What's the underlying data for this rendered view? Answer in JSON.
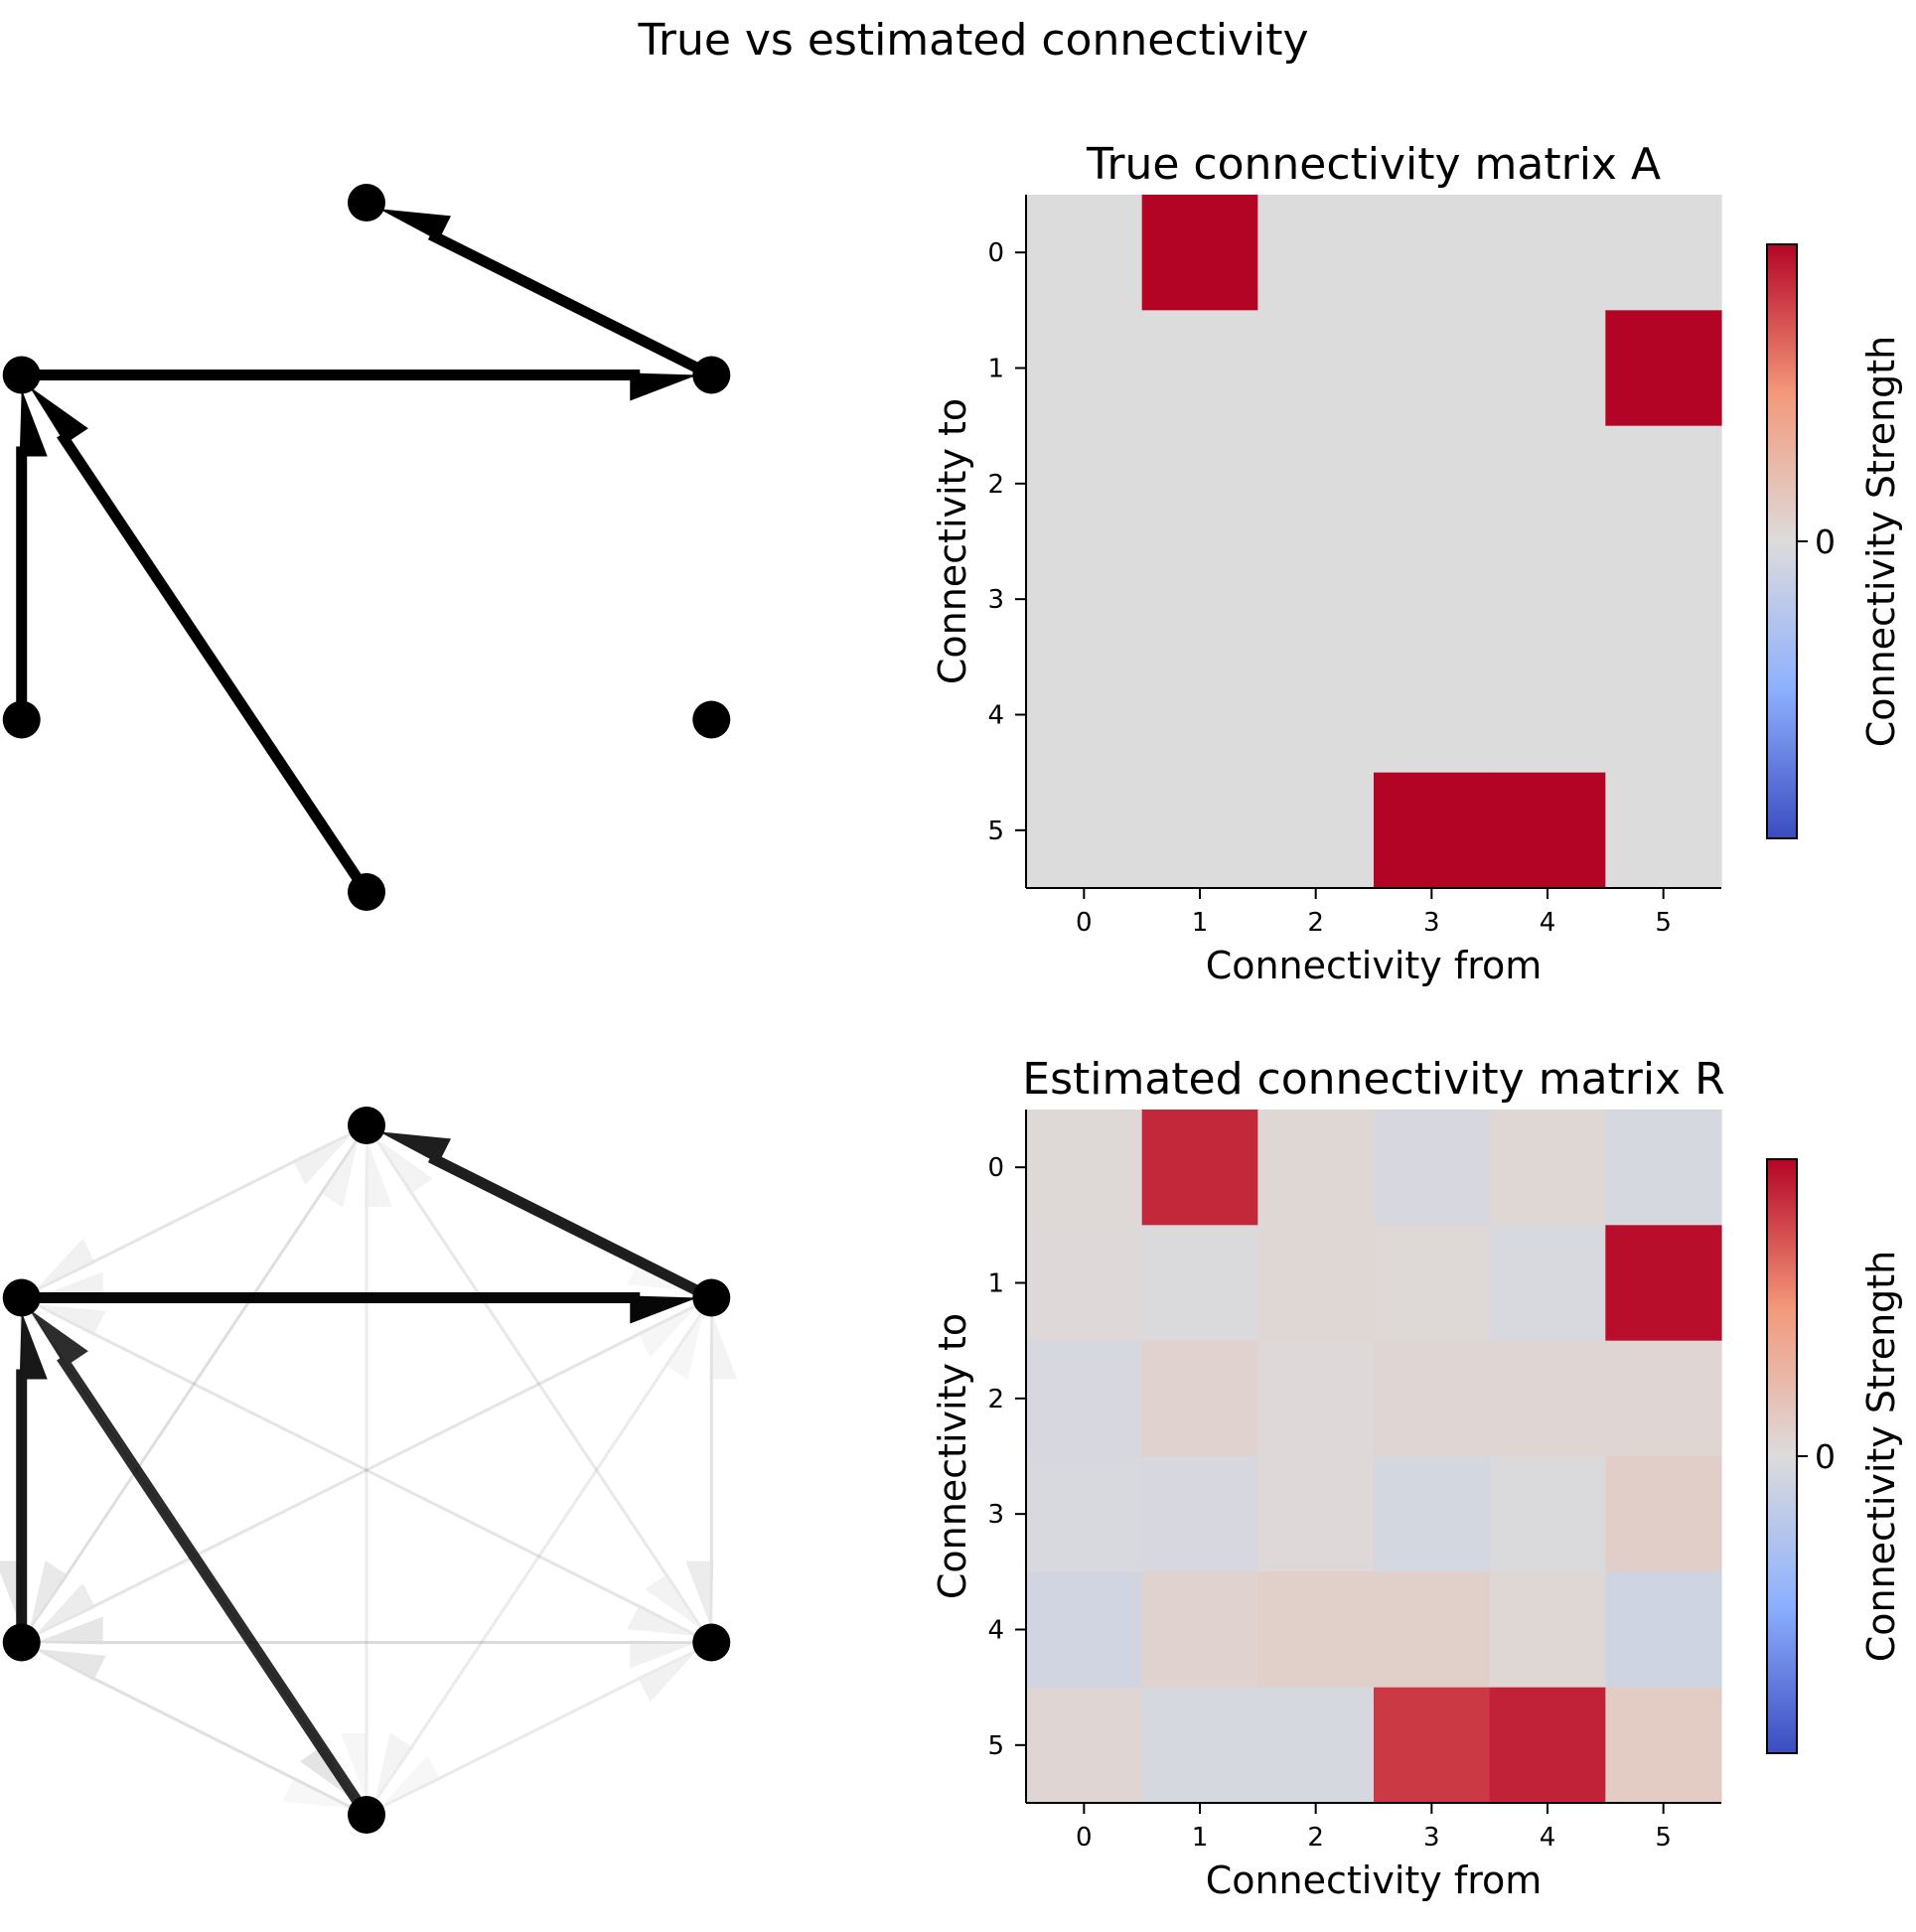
{
  "figure_title": "True vs estimated connectivity",
  "chart_data": [
    {
      "type": "network",
      "panel": "true-graph",
      "nodes": [
        0,
        1,
        2,
        3,
        4,
        5
      ],
      "edges": [
        {
          "from": 1,
          "to": 0,
          "weight": 1
        },
        {
          "from": 5,
          "to": 1,
          "weight": 1
        },
        {
          "from": 3,
          "to": 5,
          "weight": 1
        },
        {
          "from": 4,
          "to": 5,
          "weight": 1
        }
      ]
    },
    {
      "type": "heatmap",
      "panel": "true-matrix",
      "title": "True connectivity matrix A",
      "xlabel": "Connectivity from",
      "ylabel": "Connectivity to",
      "x_ticks": [
        "0",
        "1",
        "2",
        "3",
        "4",
        "5"
      ],
      "y_ticks": [
        "0",
        "1",
        "2",
        "3",
        "4",
        "5"
      ],
      "colormap": "coolwarm",
      "vlim": [
        -1,
        1
      ],
      "values": [
        [
          0,
          1,
          0,
          0,
          0,
          0
        ],
        [
          0,
          0,
          0,
          0,
          0,
          1
        ],
        [
          0,
          0,
          0,
          0,
          0,
          0
        ],
        [
          0,
          0,
          0,
          0,
          0,
          0
        ],
        [
          0,
          0,
          0,
          0,
          0,
          0
        ],
        [
          0,
          0,
          0,
          1,
          1,
          0
        ]
      ],
      "colorbar": {
        "label": "Connectivity Strength",
        "ticks": [
          "0"
        ]
      }
    },
    {
      "type": "network",
      "panel": "estimated-graph",
      "nodes": [
        0,
        1,
        2,
        3,
        4,
        5
      ],
      "edges": [
        {
          "from": 1,
          "to": 0,
          "weight": 0.88
        },
        {
          "from": 5,
          "to": 1,
          "weight": 0.97
        },
        {
          "from": 3,
          "to": 5,
          "weight": 0.82
        },
        {
          "from": 4,
          "to": 5,
          "weight": 0.9
        },
        {
          "from": 2,
          "to": 0,
          "weight": 0.04
        },
        {
          "from": 3,
          "to": 0,
          "weight": -0.04
        },
        {
          "from": 4,
          "to": 0,
          "weight": 0.04
        },
        {
          "from": 5,
          "to": 0,
          "weight": -0.05
        },
        {
          "from": 0,
          "to": 1,
          "weight": 0.02
        },
        {
          "from": 1,
          "to": 1,
          "weight": -0.02
        },
        {
          "from": 2,
          "to": 1,
          "weight": 0.04
        },
        {
          "from": 3,
          "to": 1,
          "weight": 0.03
        },
        {
          "from": 4,
          "to": 1,
          "weight": -0.03
        },
        {
          "from": 0,
          "to": 2,
          "weight": -0.04
        },
        {
          "from": 1,
          "to": 2,
          "weight": 0.07
        },
        {
          "from": 2,
          "to": 2,
          "weight": 0.02
        },
        {
          "from": 3,
          "to": 2,
          "weight": 0.05
        },
        {
          "from": 4,
          "to": 2,
          "weight": 0.05
        },
        {
          "from": 5,
          "to": 2,
          "weight": 0.05
        },
        {
          "from": 0,
          "to": 3,
          "weight": -0.03
        },
        {
          "from": 1,
          "to": 3,
          "weight": -0.04
        },
        {
          "from": 2,
          "to": 3,
          "weight": 0.02
        },
        {
          "from": 3,
          "to": 3,
          "weight": -0.06
        },
        {
          "from": 4,
          "to": 3,
          "weight": -0.02
        },
        {
          "from": 5,
          "to": 3,
          "weight": 0.1
        },
        {
          "from": 0,
          "to": 4,
          "weight": -0.08
        },
        {
          "from": 1,
          "to": 4,
          "weight": 0.07
        },
        {
          "from": 2,
          "to": 4,
          "weight": 0.09
        },
        {
          "from": 3,
          "to": 4,
          "weight": 0.09
        },
        {
          "from": 4,
          "to": 4,
          "weight": 0.04
        },
        {
          "from": 5,
          "to": 4,
          "weight": -0.09
        },
        {
          "from": 0,
          "to": 5,
          "weight": 0.05
        },
        {
          "from": 1,
          "to": 5,
          "weight": -0.05
        },
        {
          "from": 2,
          "to": 5,
          "weight": -0.05
        },
        {
          "from": 5,
          "to": 5,
          "weight": 0.12
        }
      ]
    },
    {
      "type": "heatmap",
      "panel": "estimated-matrix",
      "title": "Estimated connectivity matrix R",
      "xlabel": "Connectivity from",
      "ylabel": "Connectivity to",
      "x_ticks": [
        "0",
        "1",
        "2",
        "3",
        "4",
        "5"
      ],
      "y_ticks": [
        "0",
        "1",
        "2",
        "3",
        "4",
        "5"
      ],
      "colormap": "coolwarm",
      "vlim": [
        -1,
        1
      ],
      "values": [
        [
          0.03,
          0.88,
          0.04,
          -0.04,
          0.04,
          -0.05
        ],
        [
          0.02,
          -0.02,
          0.04,
          0.03,
          -0.03,
          0.97
        ],
        [
          -0.04,
          0.07,
          0.02,
          0.05,
          0.05,
          0.05
        ],
        [
          -0.03,
          -0.04,
          0.02,
          -0.06,
          -0.02,
          0.1
        ],
        [
          -0.08,
          0.07,
          0.09,
          0.09,
          0.04,
          -0.09
        ],
        [
          0.05,
          -0.05,
          -0.05,
          0.82,
          0.9,
          0.12
        ]
      ],
      "colorbar": {
        "label": "Connectivity Strength",
        "ticks": [
          "0"
        ]
      }
    }
  ]
}
